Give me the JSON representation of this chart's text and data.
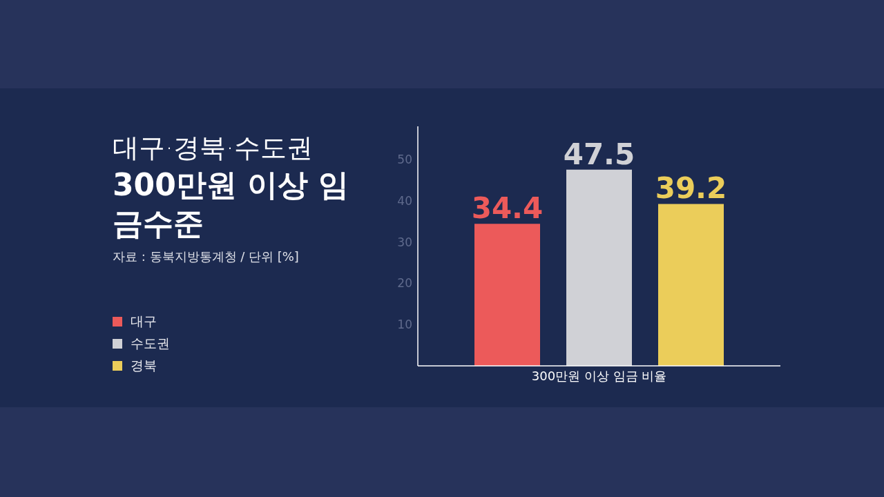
{
  "chart_data": {
    "type": "bar",
    "subtitle": "대구·경북·수도권",
    "title": "300만원 이상 임금수준",
    "annotations": [
      "자료 : 동북지방통계청 / 단위 [%]"
    ],
    "categories": [
      "300만원 이상 임금 비율"
    ],
    "series": [
      {
        "name": "대구",
        "color": "#ec5a5a",
        "values": [
          34.4
        ]
      },
      {
        "name": "수도권",
        "color": "#d0d1d6",
        "values": [
          47.5
        ]
      },
      {
        "name": "경북",
        "color": "#ebcd5a",
        "values": [
          39.2
        ]
      }
    ],
    "ylim": [
      0,
      58
    ],
    "yticks": [
      10,
      20,
      30,
      40,
      50
    ],
    "grid": false,
    "legend": "left",
    "data_labels": true
  }
}
